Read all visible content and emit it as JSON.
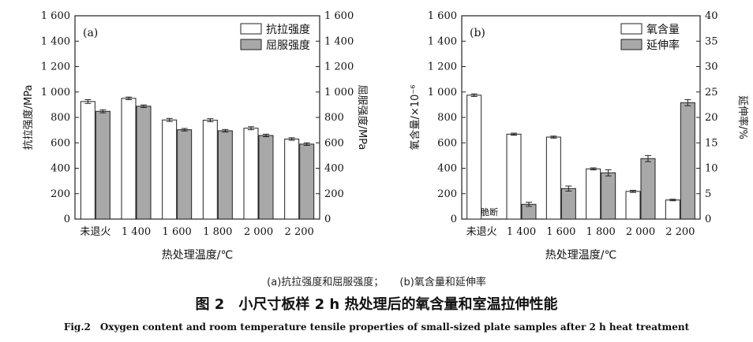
{
  "chart_data": [
    {
      "type": "bar",
      "panel_label": "(a)",
      "categories": [
        "未退火",
        "1 400",
        "1 600",
        "1 800",
        "2 000",
        "2 200"
      ],
      "series": [
        {
          "name": "抗拉强度",
          "values": [
            925,
            950,
            780,
            778,
            715,
            630
          ],
          "errors": [
            15,
            10,
            12,
            12,
            12,
            10
          ],
          "fill": "#ffffff",
          "axis": "left"
        },
        {
          "name": "屈服强度",
          "values": [
            848,
            888,
            703,
            695,
            658,
            590
          ],
          "errors": [
            12,
            10,
            10,
            10,
            10,
            10
          ],
          "fill": "#a8a8a8",
          "axis": "right"
        }
      ],
      "xlabel": "热处理温度/℃",
      "ylabel": "抗拉强度/MPa",
      "y2label": "屈服强度/MPa",
      "ylim": [
        0,
        1600
      ],
      "y2lim": [
        0,
        1600
      ],
      "yticks": [
        "0",
        "200",
        "400",
        "600",
        "800",
        "1 000",
        "1 200",
        "1 400",
        "1 600"
      ],
      "y2ticks": [
        "0",
        "200",
        "400",
        "600",
        "800",
        "1 000",
        "1 200",
        "1 400",
        "1 600"
      ],
      "legend": "top-right",
      "grid": false
    },
    {
      "type": "bar",
      "panel_label": "(b)",
      "categories": [
        "未退火",
        "1 400",
        "1 600",
        "1 800",
        "2 000",
        "2 200"
      ],
      "series": [
        {
          "name": "氧含量",
          "values": [
            975,
            668,
            645,
            395,
            218,
            150
          ],
          "errors": [
            10,
            8,
            8,
            8,
            8,
            6
          ],
          "fill": "#ffffff",
          "axis": "left"
        },
        {
          "name": "延伸率",
          "values": [
            null,
            2.9,
            6.0,
            9.1,
            11.9,
            22.9
          ],
          "errors": [
            0,
            0.4,
            0.5,
            0.6,
            0.6,
            0.6
          ],
          "fill": "#a8a8a8",
          "axis": "right"
        }
      ],
      "annotations": [
        {
          "category": "未退火",
          "text": "脆断"
        }
      ],
      "xlabel": "热处理温度/℃",
      "ylabel": "氧含量/×10⁻⁶",
      "y2label": "延伸率/%",
      "ylim": [
        0,
        1600
      ],
      "y2lim": [
        0,
        40
      ],
      "yticks": [
        "0",
        "200",
        "400",
        "600",
        "800",
        "1 000",
        "1 200",
        "1 400",
        "1 600"
      ],
      "y2ticks": [
        "0",
        "5",
        "10",
        "15",
        "20",
        "25",
        "30",
        "35",
        "40"
      ],
      "legend": "top-right",
      "grid": false
    }
  ],
  "captions": {
    "sub_a": "(a)抗拉强度和屈服强度；",
    "sub_b": "(b)氧含量和延伸率",
    "main": "图 2　小尺寸板样 2 h 热处理后的氧含量和室温拉伸性能",
    "english": "Fig.2　Oxygen content and room temperature tensile properties of small-sized plate samples after 2 h heat treatment"
  }
}
